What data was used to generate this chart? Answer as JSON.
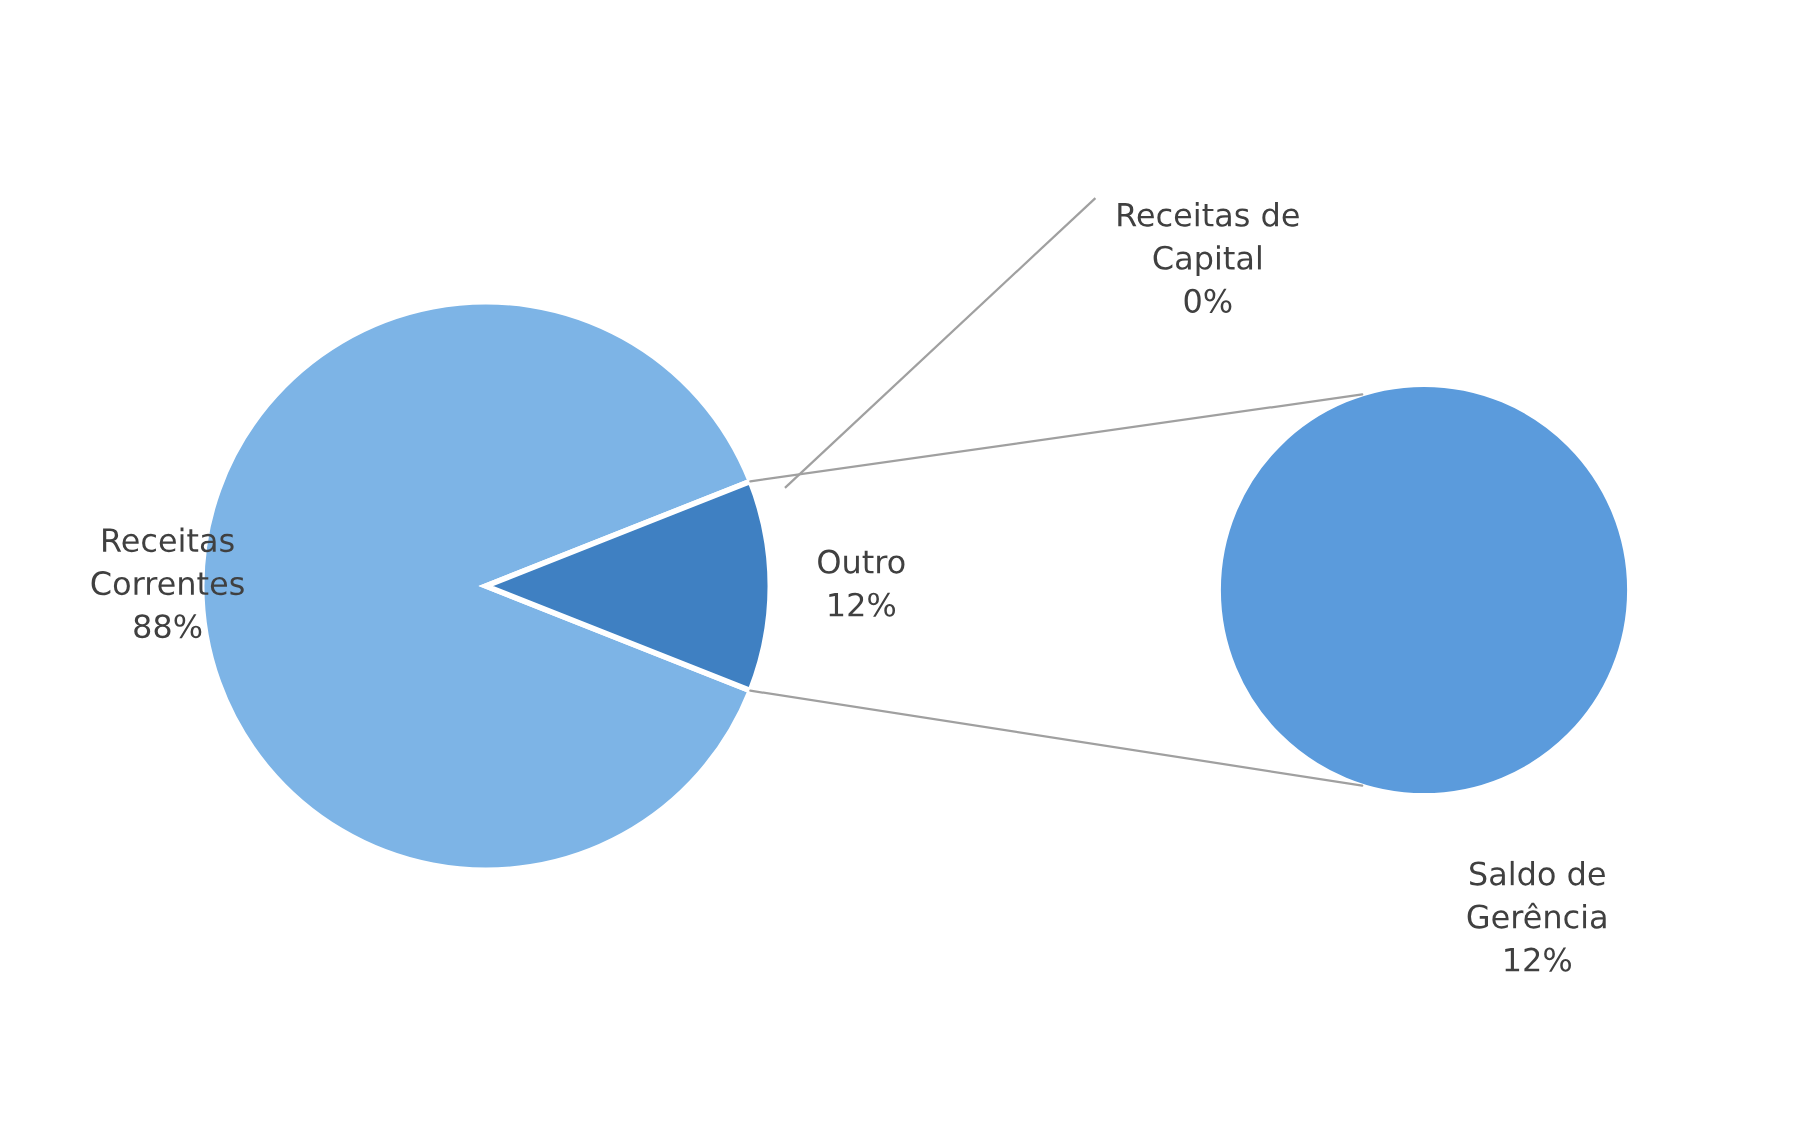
{
  "chart_data": [
    {
      "type": "pie",
      "categories": [
        "Receitas Correntes",
        "Outro"
      ],
      "values": [
        88,
        12
      ],
      "value_labels": [
        "88%",
        "12%"
      ],
      "colors": [
        "#7db4e6",
        "#3f80c2"
      ]
    },
    {
      "type": "pie",
      "categories": [
        "Receitas de Capital",
        "Saldo de Gerência"
      ],
      "values": [
        0,
        12
      ],
      "value_labels": [
        "0%",
        "12%"
      ],
      "colors": [
        "#5b9bdc",
        "#5b9bdc"
      ]
    }
  ]
}
